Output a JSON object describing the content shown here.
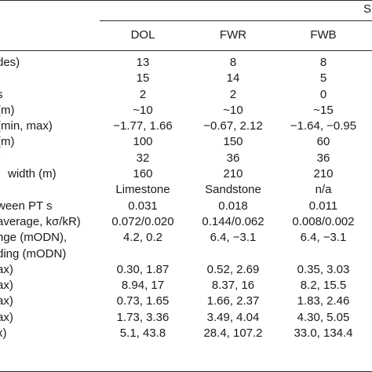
{
  "table": {
    "group_title": "S",
    "columns": [
      "DOL",
      "FWR",
      "FWB"
    ],
    "rows": [
      {
        "label": "des)",
        "values": [
          "13",
          "8",
          "8"
        ]
      },
      {
        "label": "",
        "values": [
          "15",
          "14",
          "5"
        ]
      },
      {
        "label": "s",
        "values": [
          "2",
          "2",
          "0"
        ]
      },
      {
        "label": "(m)",
        "values": [
          "~10",
          "~10",
          "~15"
        ]
      },
      {
        "label": "(min, max)",
        "values": [
          "−1.77, 1.66",
          "−0.67, 2.12",
          "−1.64, −0.95"
        ]
      },
      {
        "label": "(m)",
        "values": [
          "100",
          "150",
          "60"
        ]
      },
      {
        "label": ")",
        "values": [
          "32",
          "36",
          "36"
        ]
      },
      {
        "label": "width (m)",
        "values": [
          "160",
          "210",
          "210"
        ]
      },
      {
        "label": "",
        "values": [
          "Limestone",
          "Sandstone",
          "n/a"
        ]
      },
      {
        "label": "ween PT s",
        "values": [
          "0.031",
          "0.018",
          "0.011"
        ]
      },
      {
        "label": "average, kσ/kR)",
        "values": [
          "0.072/0.020",
          "0.144/0.062",
          "0.008/0.002"
        ]
      },
      {
        "label": "nge (mODN),",
        "values": [
          "4.2, 0.2",
          "6.4, −3.1",
          "6.4, −3.1"
        ]
      },
      {
        "label": "ding (mODN)",
        "values": [
          "",
          "",
          ""
        ]
      },
      {
        "label": "ax)",
        "values": [
          "0.30, 1.87",
          "0.52, 2.69",
          "0.35, 3.03"
        ]
      },
      {
        "label": "ax)",
        "values": [
          "8.94, 17",
          "8.37, 16",
          "8.2, 15.5"
        ]
      },
      {
        "label": "ax)",
        "values": [
          "0.73, 1.65",
          "1.66, 2.37",
          "1.83, 2.46"
        ]
      },
      {
        "label": "ax)",
        "values": [
          "1.73, 3.36",
          "3.49, 4.04",
          "4.30, 5.05"
        ]
      },
      {
        "label": "x)",
        "values": [
          "5.1, 43.8",
          "28.4, 107.2",
          "33.0, 134.4"
        ]
      }
    ]
  }
}
